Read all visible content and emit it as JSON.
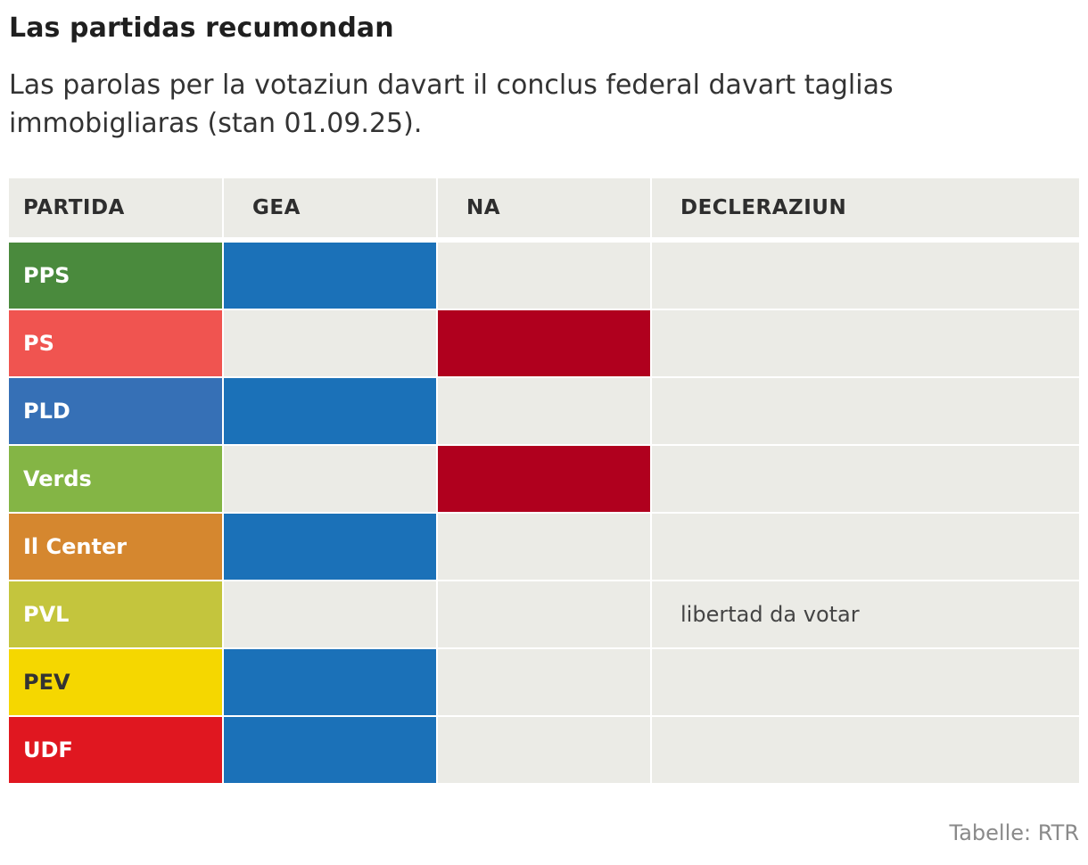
{
  "title": "Las partidas recumondan",
  "subtitle": "Las parolas per la votaziun davart il conclus federal davart taglias immobigliaras (stan 01.09.25).",
  "source": "Tabelle: RTR",
  "colors": {
    "yes": "#1b71b8",
    "no": "#b0001e",
    "empty": "#ebebe6"
  },
  "chart_data": {
    "type": "table",
    "columns": [
      "PARTIDA",
      "GEA",
      "NA",
      "DECLERAZIUN"
    ],
    "rows": [
      {
        "party": "PPS",
        "color": "#4a8a3d",
        "text_color": "#ffffff",
        "gea": true,
        "na": false,
        "decleraziun": ""
      },
      {
        "party": "PS",
        "color": "#f05450",
        "text_color": "#ffffff",
        "gea": false,
        "na": true,
        "decleraziun": ""
      },
      {
        "party": "PLD",
        "color": "#3670b6",
        "text_color": "#ffffff",
        "gea": true,
        "na": false,
        "decleraziun": ""
      },
      {
        "party": "Verds",
        "color": "#84b545",
        "text_color": "#ffffff",
        "gea": false,
        "na": true,
        "decleraziun": ""
      },
      {
        "party": "Il Center",
        "color": "#d5872f",
        "text_color": "#ffffff",
        "gea": true,
        "na": false,
        "decleraziun": ""
      },
      {
        "party": "PVL",
        "color": "#c4c53d",
        "text_color": "#ffffff",
        "gea": false,
        "na": false,
        "decleraziun": "libertad da votar"
      },
      {
        "party": "PEV",
        "color": "#f5d700",
        "text_color": "#333333",
        "gea": true,
        "na": false,
        "decleraziun": ""
      },
      {
        "party": "UDF",
        "color": "#e01720",
        "text_color": "#ffffff",
        "gea": true,
        "na": false,
        "decleraziun": ""
      }
    ]
  }
}
